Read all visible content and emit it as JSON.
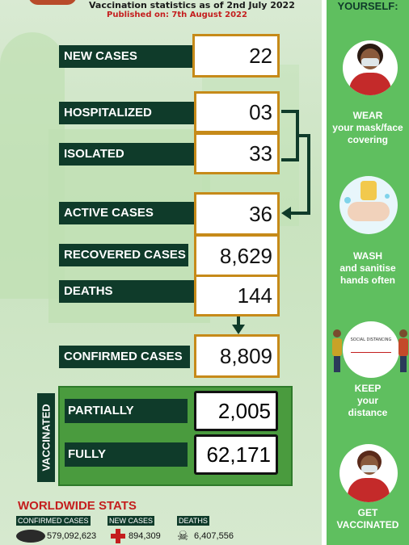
{
  "header": {
    "line1": "Vaccination statistics as of 2nd July 2022",
    "line2": "Published on: 7th August 2022"
  },
  "stats": {
    "new_cases": {
      "label": "NEW CASES",
      "value": "22"
    },
    "hospitalized": {
      "label": "HOSPITALIZED",
      "value": "03"
    },
    "isolated": {
      "label": "ISOLATED",
      "value": "33"
    },
    "active_cases": {
      "label": "ACTIVE CASES",
      "value": "36"
    },
    "recovered_cases": {
      "label": "RECOVERED CASES",
      "value": "8,629"
    },
    "deaths": {
      "label": "DEATHS",
      "value": "144"
    },
    "confirmed_cases": {
      "label": "CONFIRMED CASES",
      "value": "8,809"
    }
  },
  "vaccinated": {
    "title": "VACCINATED",
    "partially": {
      "label": "PARTIALLY",
      "value": "2,005"
    },
    "fully": {
      "label": "FULLY",
      "value": "62,171"
    }
  },
  "worldwide": {
    "title": "WORLDWIDE STATS",
    "confirmed": {
      "tag": "CONFIRMED CASES",
      "value": "579,092,623"
    },
    "new": {
      "tag": "NEW CASES",
      "value": "894,309"
    },
    "deaths": {
      "tag": "DEATHS",
      "value": "6,407,556"
    }
  },
  "sidebar": {
    "title": "YOURSELF:",
    "items": [
      {
        "text": "WEAR your mask/face covering",
        "line1": "WEAR",
        "line2": "your mask/face",
        "line3": "covering",
        "icon": "mask-person-icon"
      },
      {
        "text": "WASH and sanitise hands often",
        "line1": "WASH",
        "line2": "and sanitise",
        "line3": "hands often",
        "icon": "hand-wash-icon"
      },
      {
        "text": "KEEP your distance",
        "line1": "KEEP",
        "line2": "your",
        "line3": "distance",
        "icon": "social-distancing-icon",
        "distance_sign": "SOCIAL DISTANCING"
      },
      {
        "text": "GET VACCINATED",
        "line1": "GET",
        "line2": "VACCINATED",
        "icon": "vaccinated-person-icon"
      }
    ]
  },
  "colors": {
    "dark_green": "#0f3b2a",
    "gold": "#c68a19",
    "side_green": "#5fbf5f",
    "red": "#c41e1e"
  }
}
